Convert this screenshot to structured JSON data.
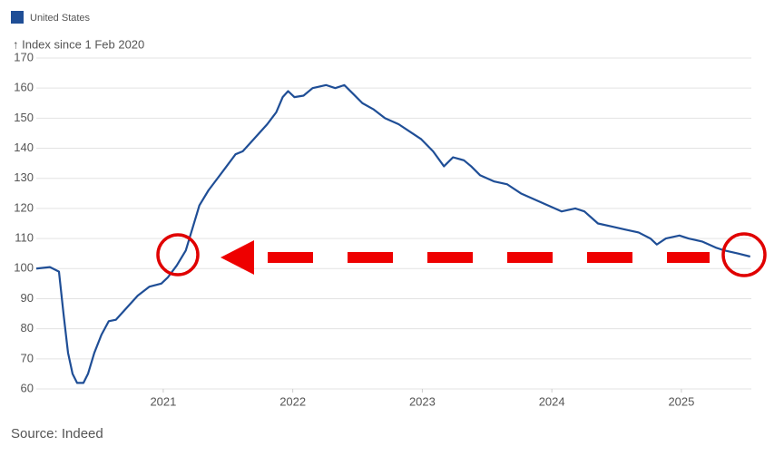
{
  "chart_data": {
    "type": "line",
    "y_axis_label": "↑ Index since 1 Feb 2020",
    "source": "Source: Indeed",
    "x": [
      2020.02,
      2020.125,
      2020.195,
      2020.23,
      2020.265,
      2020.3,
      2020.335,
      2020.384,
      2020.419,
      2020.468,
      2020.523,
      2020.579,
      2020.635,
      2020.719,
      2020.803,
      2020.894,
      2020.985,
      2021.034,
      2021.104,
      2021.174,
      2021.223,
      2021.279,
      2021.349,
      2021.419,
      2021.489,
      2021.558,
      2021.614,
      2021.698,
      2021.803,
      2021.873,
      2021.922,
      2021.964,
      2022.013,
      2022.083,
      2022.153,
      2022.258,
      2022.328,
      2022.398,
      2022.468,
      2022.537,
      2022.621,
      2022.712,
      2022.817,
      2022.922,
      2022.992,
      2023.083,
      2023.167,
      2023.237,
      2023.321,
      2023.377,
      2023.447,
      2023.552,
      2023.656,
      2023.761,
      2023.866,
      2023.971,
      2024.076,
      2024.181,
      2024.251,
      2024.356,
      2024.461,
      2024.565,
      2024.67,
      2024.761,
      2024.81,
      2024.88,
      2024.985,
      2025.055,
      2025.16,
      2025.264,
      2025.334,
      2025.439,
      2025.531
    ],
    "series": [
      {
        "name": "United States",
        "color": "#1f4e96",
        "values": [
          100,
          100.5,
          99,
          85,
          72,
          65,
          62,
          62,
          65,
          72,
          78,
          82.5,
          83,
          87,
          91,
          94,
          95,
          97,
          101,
          106,
          113,
          121,
          126,
          130,
          134,
          138,
          139,
          143,
          148,
          152,
          157,
          159,
          157,
          157.5,
          160,
          161,
          160,
          161,
          158,
          155,
          153,
          150,
          148,
          145,
          143,
          139,
          134,
          137,
          136,
          134,
          131,
          129,
          128,
          125,
          123,
          121,
          119,
          120,
          119,
          115,
          114,
          113,
          112,
          110,
          108,
          110,
          111,
          110,
          109,
          107,
          106,
          105,
          104
        ]
      }
    ],
    "xlim": [
      2020.02,
      2025.54
    ],
    "xticks": [
      2021,
      2022,
      2023,
      2024,
      2025
    ],
    "ylim": [
      60,
      170
    ],
    "yticks": [
      60,
      70,
      80,
      90,
      100,
      110,
      120,
      130,
      140,
      150,
      160,
      170
    ],
    "grid": true
  }
}
